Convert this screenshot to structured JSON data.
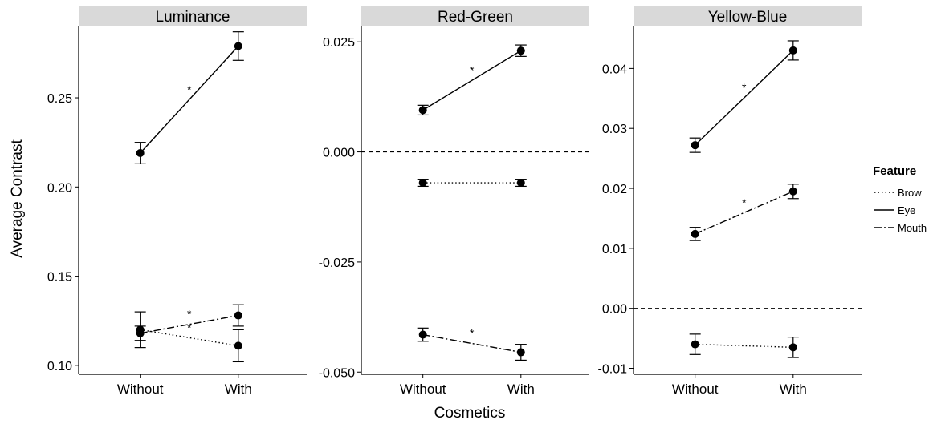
{
  "chart_data": {
    "type": "line",
    "x_categories": [
      "Without",
      "With"
    ],
    "xlabel": "Cosmetics",
    "ylabel": "Average Contrast",
    "legend": {
      "title": "Feature",
      "placement": "right",
      "entries": [
        {
          "name": "Brow",
          "linetype": "dotted"
        },
        {
          "name": "Eye",
          "linetype": "solid"
        },
        {
          "name": "Mouth",
          "linetype": "dashdot"
        }
      ]
    },
    "grid": false,
    "panels": [
      {
        "title": "Luminance",
        "ylim": [
          0.095,
          0.29
        ],
        "yticks": [
          0.1,
          0.15,
          0.2,
          0.25
        ],
        "ytick_labels": [
          "0.10",
          "0.15",
          "0.20",
          "0.25"
        ],
        "reference_line": null,
        "series": [
          {
            "name": "Eye",
            "values": [
              0.219,
              0.279
            ],
            "err": [
              0.006,
              0.008
            ],
            "significant": true
          },
          {
            "name": "Brow",
            "values": [
              0.12,
              0.111
            ],
            "err": [
              0.01,
              0.009
            ],
            "significant": true
          },
          {
            "name": "Mouth",
            "values": [
              0.118,
              0.128
            ],
            "err": [
              0.004,
              0.006
            ],
            "significant": true
          }
        ]
      },
      {
        "title": "Red-Green",
        "ylim": [
          -0.0505,
          0.0285
        ],
        "yticks": [
          -0.05,
          -0.025,
          0.0,
          0.025
        ],
        "ytick_labels": [
          "-0.050",
          "-0.025",
          "0.000",
          "0.025"
        ],
        "reference_line": 0,
        "series": [
          {
            "name": "Eye",
            "values": [
              0.0095,
              0.023
            ],
            "err": [
              0.0011,
              0.0013
            ],
            "significant": true
          },
          {
            "name": "Brow",
            "values": [
              -0.007,
              -0.007
            ],
            "err": [
              0.0008,
              0.0008
            ],
            "significant": false
          },
          {
            "name": "Mouth",
            "values": [
              -0.0415,
              -0.0455
            ],
            "err": [
              0.0015,
              0.0018
            ],
            "significant": true
          }
        ]
      },
      {
        "title": "Yellow-Blue",
        "ylim": [
          -0.011,
          0.047
        ],
        "yticks": [
          -0.01,
          0.0,
          0.01,
          0.02,
          0.03,
          0.04
        ],
        "ytick_labels": [
          "-0.01",
          "0.00",
          "0.01",
          "0.02",
          "0.03",
          "0.04"
        ],
        "reference_line": 0,
        "series": [
          {
            "name": "Eye",
            "values": [
              0.0272,
              0.043
            ],
            "err": [
              0.0012,
              0.0016
            ],
            "significant": true
          },
          {
            "name": "Mouth",
            "values": [
              0.0124,
              0.0195
            ],
            "err": [
              0.0011,
              0.0012
            ],
            "significant": true
          },
          {
            "name": "Brow",
            "values": [
              -0.006,
              -0.0065
            ],
            "err": [
              0.0017,
              0.0017
            ],
            "significant": false
          }
        ]
      }
    ]
  }
}
